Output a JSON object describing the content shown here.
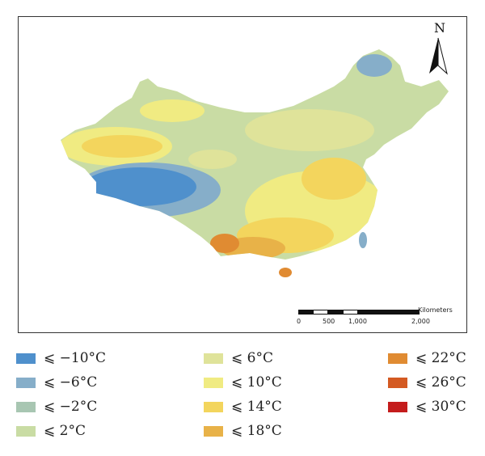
{
  "map": {
    "north_label": "N",
    "scale": {
      "unit": "Kilometers",
      "ticks": [
        "0",
        "500",
        "1,000",
        "2,000"
      ]
    }
  },
  "legend": {
    "items": [
      {
        "label": "⩽ −10°C",
        "color": "#4f90cc"
      },
      {
        "label": "⩽ −6°C",
        "color": "#86aec9"
      },
      {
        "label": "⩽ −2°C",
        "color": "#a8c6b2"
      },
      {
        "label": "⩽ 2°C",
        "color": "#c9dca4"
      },
      {
        "label": "⩽ 6°C",
        "color": "#dfe39a"
      },
      {
        "label": "⩽ 10°C",
        "color": "#f0eb82"
      },
      {
        "label": "⩽ 14°C",
        "color": "#f3d55d"
      },
      {
        "label": "⩽ 18°C",
        "color": "#e8b248"
      },
      {
        "label": "⩽ 22°C",
        "color": "#e08b32"
      },
      {
        "label": "⩽ 26°C",
        "color": "#d45a22"
      },
      {
        "label": "⩽ 30°C",
        "color": "#c41c1c"
      }
    ]
  }
}
